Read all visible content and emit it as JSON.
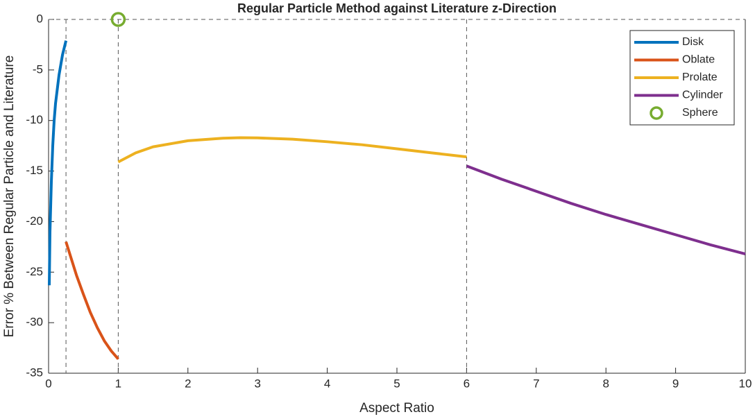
{
  "chart_data": {
    "type": "line",
    "title": "Regular Particle Method against Literature z-Direction",
    "x_label": "Aspect Ratio",
    "y_label": "Error % Between Regular Particle and Literature",
    "xlim": [
      0,
      10
    ],
    "ylim": [
      -35,
      0
    ],
    "xticks": [
      0,
      1,
      2,
      3,
      4,
      5,
      6,
      7,
      8,
      9,
      10
    ],
    "yticks": [
      0,
      -5,
      -10,
      -15,
      -20,
      -25,
      -30,
      -35
    ],
    "vlines": [
      0.25,
      1,
      6
    ],
    "hlines": [
      0
    ],
    "legend": "top-right",
    "series": [
      {
        "name": "Disk",
        "color": "#0072BD",
        "x": [
          0.01,
          0.02,
          0.04,
          0.06,
          0.08,
          0.1,
          0.15,
          0.2,
          0.25
        ],
        "values": [
          -26.3,
          -21,
          -16,
          -12.5,
          -10,
          -8.3,
          -5.5,
          -3.5,
          -2.1
        ]
      },
      {
        "name": "Oblate",
        "color": "#D95319",
        "x": [
          0.25,
          0.4,
          0.5,
          0.6,
          0.7,
          0.8,
          0.9,
          1
        ],
        "values": [
          -22,
          -25.3,
          -27.2,
          -29,
          -30.5,
          -31.8,
          -32.8,
          -33.6
        ]
      },
      {
        "name": "Prolate",
        "color": "#EDB120",
        "x": [
          1,
          1.25,
          1.5,
          2,
          2.5,
          2.75,
          3,
          3.5,
          4,
          4.5,
          5,
          5.5,
          6
        ],
        "values": [
          -14.1,
          -13.2,
          -12.6,
          -12.0,
          -11.75,
          -11.7,
          -11.72,
          -11.85,
          -12.1,
          -12.4,
          -12.8,
          -13.2,
          -13.6
        ]
      },
      {
        "name": "Cylinder",
        "color": "#7E2F8E",
        "x": [
          6,
          6.5,
          7,
          7.5,
          8,
          8.5,
          9,
          9.5,
          10
        ],
        "values": [
          -14.5,
          -15.8,
          -17.0,
          -18.2,
          -19.3,
          -20.3,
          -21.3,
          -22.3,
          -23.2
        ]
      },
      {
        "name": "Sphere",
        "color": "#77AC30",
        "marker": "o",
        "x": [
          1
        ],
        "values": [
          0
        ]
      }
    ]
  }
}
